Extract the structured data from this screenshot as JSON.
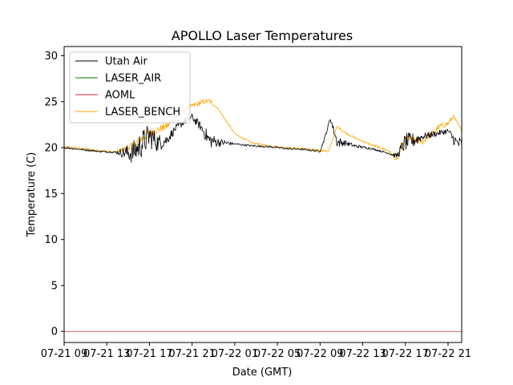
{
  "chart_data": {
    "type": "line",
    "title": "APOLLO Laser Temperatures",
    "xlabel": "Date (GMT)",
    "ylabel": "Temperature (C)",
    "xlim": [
      0,
      23.3
    ],
    "ylim": [
      -1.2,
      31
    ],
    "yticks": [
      0,
      5,
      10,
      15,
      20,
      25,
      30
    ],
    "xticks": [
      {
        "x": 0,
        "label": "07-21 09"
      },
      {
        "x": 2.5,
        "label": "07-21 13"
      },
      {
        "x": 5,
        "label": "07-21 17"
      },
      {
        "x": 7.5,
        "label": "07-21 21"
      },
      {
        "x": 10,
        "label": "07-22 01"
      },
      {
        "x": 12.5,
        "label": "07-22 05"
      },
      {
        "x": 15,
        "label": "07-22 09"
      },
      {
        "x": 17.5,
        "label": "07-22 13"
      },
      {
        "x": 20,
        "label": "07-22 17"
      },
      {
        "x": 22.5,
        "label": "07-22 21"
      }
    ],
    "legend_location": "upper left",
    "series": [
      {
        "name": "Utah Air",
        "color": "#000000",
        "x": [
          0,
          1,
          2,
          3,
          4,
          4.5,
          5,
          5.5,
          6,
          6.5,
          7,
          7.5,
          8,
          8.5,
          9,
          10,
          11,
          12,
          13,
          14,
          15,
          15.3,
          15.6,
          16,
          16.5,
          17,
          18,
          19,
          19.5,
          20,
          20.5,
          21,
          22,
          22.5,
          23,
          23.3
        ],
        "y": [
          20.0,
          19.8,
          19.6,
          19.5,
          19.4,
          20.3,
          21.3,
          20.5,
          20.8,
          22.0,
          22.8,
          23.3,
          22.3,
          20.8,
          20.6,
          20.4,
          20.2,
          20.1,
          19.9,
          19.8,
          19.6,
          21.2,
          23.2,
          20.6,
          20.5,
          20.2,
          19.9,
          19.4,
          19.1,
          20.6,
          20.8,
          21.2,
          21.6,
          21.8,
          20.5,
          20.4
        ],
        "noise": [
          0.1,
          0.1,
          0.1,
          0.1,
          1.2,
          1.5,
          1.4,
          1.0,
          0.6,
          0.4,
          0.4,
          0.4,
          0.5,
          0.9,
          0.5,
          0.1,
          0.1,
          0.1,
          0.1,
          0.1,
          0.1,
          0.2,
          0.2,
          0.6,
          0.3,
          0.2,
          0.1,
          0.1,
          0.3,
          1.0,
          0.8,
          0.4,
          0.3,
          0.3,
          0.8,
          0.7
        ]
      },
      {
        "name": "LASER_AIR",
        "color": "#008000",
        "x": [],
        "y": []
      },
      {
        "name": "AOML",
        "color": "#d62728",
        "x": [
          0,
          23.3
        ],
        "y": [
          0,
          0
        ]
      },
      {
        "name": "LASER_BENCH",
        "color": "#ffa500",
        "x": [
          0,
          1,
          2,
          3,
          4,
          5,
          6,
          7,
          8,
          8.5,
          9,
          10,
          11,
          12,
          13,
          14,
          15,
          15.5,
          16,
          16.5,
          17,
          18,
          19,
          19.5,
          20,
          21,
          22,
          22.5,
          22.8,
          23.3
        ],
        "y": [
          20.1,
          19.9,
          19.7,
          19.5,
          20.2,
          21.6,
          22.3,
          24.1,
          24.9,
          25.1,
          24.3,
          21.5,
          20.5,
          20.2,
          20.0,
          19.9,
          19.7,
          19.6,
          22.3,
          21.6,
          21.1,
          20.3,
          19.7,
          18.6,
          21.1,
          20.6,
          22.3,
          22.6,
          23.4,
          21.9
        ],
        "noise": [
          0.1,
          0.1,
          0.1,
          0.1,
          0.4,
          0.5,
          0.4,
          0.3,
          0.3,
          0.3,
          0.1,
          0.1,
          0.1,
          0.1,
          0.1,
          0.1,
          0.1,
          0.1,
          0.1,
          0.1,
          0.1,
          0.1,
          0.2,
          0.2,
          0.3,
          0.3,
          0.3,
          0.3,
          0.3,
          0.1
        ]
      }
    ]
  }
}
